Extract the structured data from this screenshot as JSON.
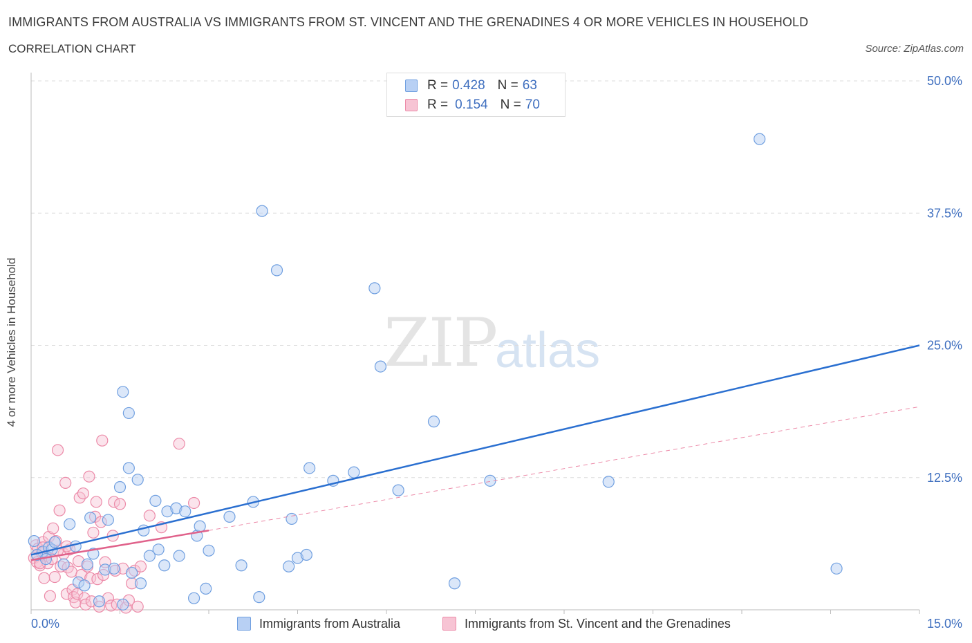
{
  "header": {
    "title": "IMMIGRANTS FROM AUSTRALIA VS IMMIGRANTS FROM ST. VINCENT AND THE GRENADINES 4 OR MORE VEHICLES IN HOUSEHOLD",
    "subtitle": "CORRELATION CHART",
    "source": "Source: ZipAtlas.com"
  },
  "watermark": {
    "zip": "ZIP",
    "atlas": "atlas"
  },
  "legend": {
    "rows": [
      {
        "r_label": "R =",
        "r_value": "0.428",
        "n_label": "N =",
        "n_value": "63",
        "color": "#6f9fe0"
      },
      {
        "r_label": "R =",
        "r_value": "0.154",
        "n_label": "N =",
        "n_value": "70",
        "color": "#ef8fb0"
      }
    ]
  },
  "colors": {
    "blue_fill": "#b8d0f4",
    "blue_stroke": "#6f9fe0",
    "blue_line": "#2a6fd0",
    "pink_fill": "#f7c4d4",
    "pink_stroke": "#ec8aa8",
    "pink_line": "#e0628b",
    "grid": "#dcdcdc",
    "tick_text": "#3f6fbf"
  },
  "chart_data": {
    "type": "scatter",
    "title": "IMMIGRANTS FROM AUSTRALIA VS IMMIGRANTS FROM ST. VINCENT AND THE GRENADINES 4 OR MORE VEHICLES IN HOUSEHOLD",
    "xlabel": "",
    "ylabel": "4 or more Vehicles in Household",
    "xlim": [
      0,
      15
    ],
    "ylim": [
      0,
      50
    ],
    "x_tick_labels": [
      "0.0%",
      "15.0%"
    ],
    "y_ticks": [
      12.5,
      25.0,
      37.5,
      50.0
    ],
    "y_tick_labels": [
      "12.5%",
      "25.0%",
      "37.5%",
      "50.0%"
    ],
    "grid": true,
    "legend_position": "top-center",
    "series": [
      {
        "name": "Immigrants from Australia",
        "trend": {
          "x": [
            0.0,
            15.0
          ],
          "y": [
            5.2,
            25.0
          ]
        },
        "points": [
          [
            0.05,
            6.5
          ],
          [
            0.2,
            5.5
          ],
          [
            0.3,
            5.9
          ],
          [
            0.35,
            5.7
          ],
          [
            0.4,
            6.4
          ],
          [
            0.55,
            4.3
          ],
          [
            0.65,
            8.1
          ],
          [
            0.75,
            6.0
          ],
          [
            0.8,
            2.6
          ],
          [
            0.9,
            2.3
          ],
          [
            0.95,
            4.3
          ],
          [
            1.0,
            8.7
          ],
          [
            1.05,
            5.3
          ],
          [
            1.15,
            0.8
          ],
          [
            1.25,
            3.8
          ],
          [
            1.3,
            8.5
          ],
          [
            1.4,
            3.9
          ],
          [
            1.5,
            11.6
          ],
          [
            1.55,
            0.5
          ],
          [
            1.65,
            13.4
          ],
          [
            1.55,
            20.6
          ],
          [
            1.65,
            18.6
          ],
          [
            1.7,
            3.5
          ],
          [
            1.8,
            12.3
          ],
          [
            1.85,
            2.5
          ],
          [
            1.9,
            7.5
          ],
          [
            2.0,
            5.1
          ],
          [
            2.1,
            10.3
          ],
          [
            2.15,
            5.7
          ],
          [
            2.25,
            4.2
          ],
          [
            2.3,
            9.3
          ],
          [
            2.45,
            9.6
          ],
          [
            2.5,
            5.1
          ],
          [
            2.6,
            9.3
          ],
          [
            2.75,
            1.1
          ],
          [
            2.8,
            7.0
          ],
          [
            2.85,
            7.9
          ],
          [
            2.95,
            2.0
          ],
          [
            3.0,
            5.6
          ],
          [
            3.35,
            8.8
          ],
          [
            3.55,
            4.2
          ],
          [
            3.75,
            10.2
          ],
          [
            3.85,
            1.2
          ],
          [
            3.9,
            37.7
          ],
          [
            4.15,
            32.1
          ],
          [
            4.35,
            4.1
          ],
          [
            4.4,
            8.6
          ],
          [
            4.5,
            4.9
          ],
          [
            4.65,
            5.2
          ],
          [
            4.7,
            13.4
          ],
          [
            5.1,
            12.2
          ],
          [
            5.45,
            13.0
          ],
          [
            5.8,
            30.4
          ],
          [
            5.9,
            23.0
          ],
          [
            6.2,
            11.3
          ],
          [
            6.8,
            17.8
          ],
          [
            7.15,
            2.5
          ],
          [
            7.75,
            12.2
          ],
          [
            9.75,
            12.1
          ],
          [
            12.3,
            44.5
          ],
          [
            13.6,
            3.9
          ],
          [
            0.1,
            5.2
          ],
          [
            0.25,
            4.8
          ]
        ]
      },
      {
        "name": "Immigrants from St. Vincent and the Grenadines",
        "trend": {
          "x": [
            0.0,
            3.0
          ],
          "y": [
            4.7,
            7.5
          ]
        },
        "trend_extended": {
          "x": [
            3.0,
            15.0
          ],
          "y": [
            7.5,
            19.2
          ]
        },
        "points": [
          [
            0.05,
            4.9
          ],
          [
            0.08,
            6.1
          ],
          [
            0.1,
            4.5
          ],
          [
            0.12,
            5.8
          ],
          [
            0.15,
            4.2
          ],
          [
            0.18,
            5.4
          ],
          [
            0.2,
            6.4
          ],
          [
            0.22,
            3.0
          ],
          [
            0.25,
            5.1
          ],
          [
            0.28,
            4.4
          ],
          [
            0.3,
            6.9
          ],
          [
            0.32,
            1.3
          ],
          [
            0.35,
            4.8
          ],
          [
            0.37,
            7.7
          ],
          [
            0.4,
            3.1
          ],
          [
            0.42,
            6.5
          ],
          [
            0.45,
            15.1
          ],
          [
            0.48,
            9.4
          ],
          [
            0.5,
            4.1
          ],
          [
            0.55,
            5.3
          ],
          [
            0.58,
            12.0
          ],
          [
            0.6,
            1.5
          ],
          [
            0.62,
            4.0
          ],
          [
            0.65,
            5.7
          ],
          [
            0.68,
            3.6
          ],
          [
            0.7,
            1.9
          ],
          [
            0.72,
            1.2
          ],
          [
            0.75,
            0.7
          ],
          [
            0.78,
            1.5
          ],
          [
            0.8,
            4.6
          ],
          [
            0.82,
            10.6
          ],
          [
            0.85,
            3.3
          ],
          [
            0.88,
            11.0
          ],
          [
            0.9,
            1.1
          ],
          [
            0.92,
            0.5
          ],
          [
            0.95,
            4.1
          ],
          [
            0.98,
            12.6
          ],
          [
            1.0,
            3.0
          ],
          [
            1.02,
            0.8
          ],
          [
            1.05,
            7.3
          ],
          [
            1.08,
            8.8
          ],
          [
            1.1,
            10.2
          ],
          [
            1.12,
            2.9
          ],
          [
            1.15,
            0.3
          ],
          [
            1.18,
            8.3
          ],
          [
            1.2,
            16.0
          ],
          [
            1.22,
            3.3
          ],
          [
            1.25,
            4.5
          ],
          [
            1.3,
            1.1
          ],
          [
            1.35,
            0.4
          ],
          [
            1.38,
            7.0
          ],
          [
            1.4,
            10.2
          ],
          [
            1.42,
            3.7
          ],
          [
            1.45,
            0.5
          ],
          [
            1.5,
            10.0
          ],
          [
            1.55,
            3.9
          ],
          [
            1.6,
            0.2
          ],
          [
            1.65,
            0.9
          ],
          [
            1.7,
            2.5
          ],
          [
            1.75,
            3.7
          ],
          [
            1.8,
            0.3
          ],
          [
            1.85,
            4.1
          ],
          [
            2.0,
            8.9
          ],
          [
            2.2,
            7.8
          ],
          [
            2.5,
            15.7
          ],
          [
            2.75,
            10.1
          ],
          [
            0.6,
            6.0
          ],
          [
            0.45,
            5.6
          ],
          [
            0.2,
            5.9
          ],
          [
            0.15,
            4.4
          ]
        ]
      }
    ]
  },
  "bottom_legend": {
    "items": [
      {
        "label": "Immigrants from Australia"
      },
      {
        "label": "Immigrants from St. Vincent and the Grenadines"
      }
    ]
  }
}
